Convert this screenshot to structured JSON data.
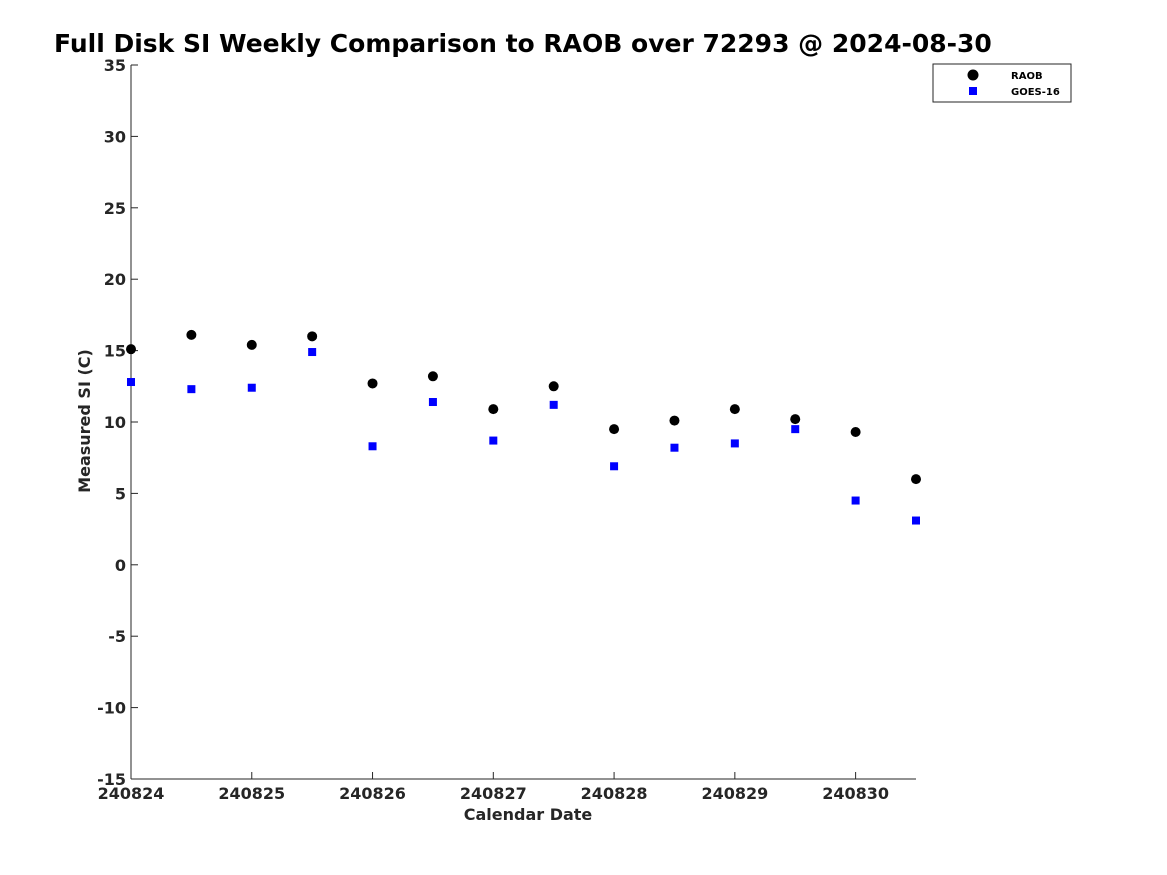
{
  "chart_data": {
    "type": "scatter",
    "title": "Full Disk SI Weekly Comparison to RAOB over 72293 @ 2024-08-30",
    "xlabel": "Calendar Date",
    "ylabel": "Measured SI (C)",
    "xlim": [
      240824,
      240830.5
    ],
    "ylim": [
      -15,
      35
    ],
    "x_ticks": [
      "240824",
      "240825",
      "240826",
      "240827",
      "240828",
      "240829",
      "240830"
    ],
    "y_ticks": [
      "35",
      "30",
      "25",
      "20",
      "15",
      "10",
      "5",
      "0",
      "-5",
      "-10",
      "-15"
    ],
    "grid": false,
    "legend_position": "top-right",
    "series": [
      {
        "name": "RAOB",
        "marker": "circle",
        "color": "#000000",
        "x": [
          240824.0,
          240824.5,
          240825.0,
          240825.5,
          240826.0,
          240826.5,
          240827.0,
          240827.5,
          240828.0,
          240828.5,
          240829.0,
          240829.5,
          240830.0,
          240830.5
        ],
        "values": [
          15.1,
          16.1,
          15.4,
          16.0,
          12.7,
          13.2,
          10.9,
          12.5,
          9.5,
          10.1,
          10.9,
          10.2,
          9.3,
          6.0
        ]
      },
      {
        "name": "GOES-16",
        "marker": "square",
        "color": "#0000ff",
        "x": [
          240824.0,
          240824.5,
          240825.0,
          240825.5,
          240826.0,
          240826.5,
          240827.0,
          240827.5,
          240828.0,
          240828.5,
          240829.0,
          240829.5,
          240830.0,
          240830.5
        ],
        "values": [
          12.8,
          12.3,
          12.4,
          14.9,
          8.3,
          11.4,
          8.7,
          11.2,
          6.9,
          8.2,
          8.5,
          9.5,
          4.5,
          3.1
        ]
      }
    ]
  }
}
